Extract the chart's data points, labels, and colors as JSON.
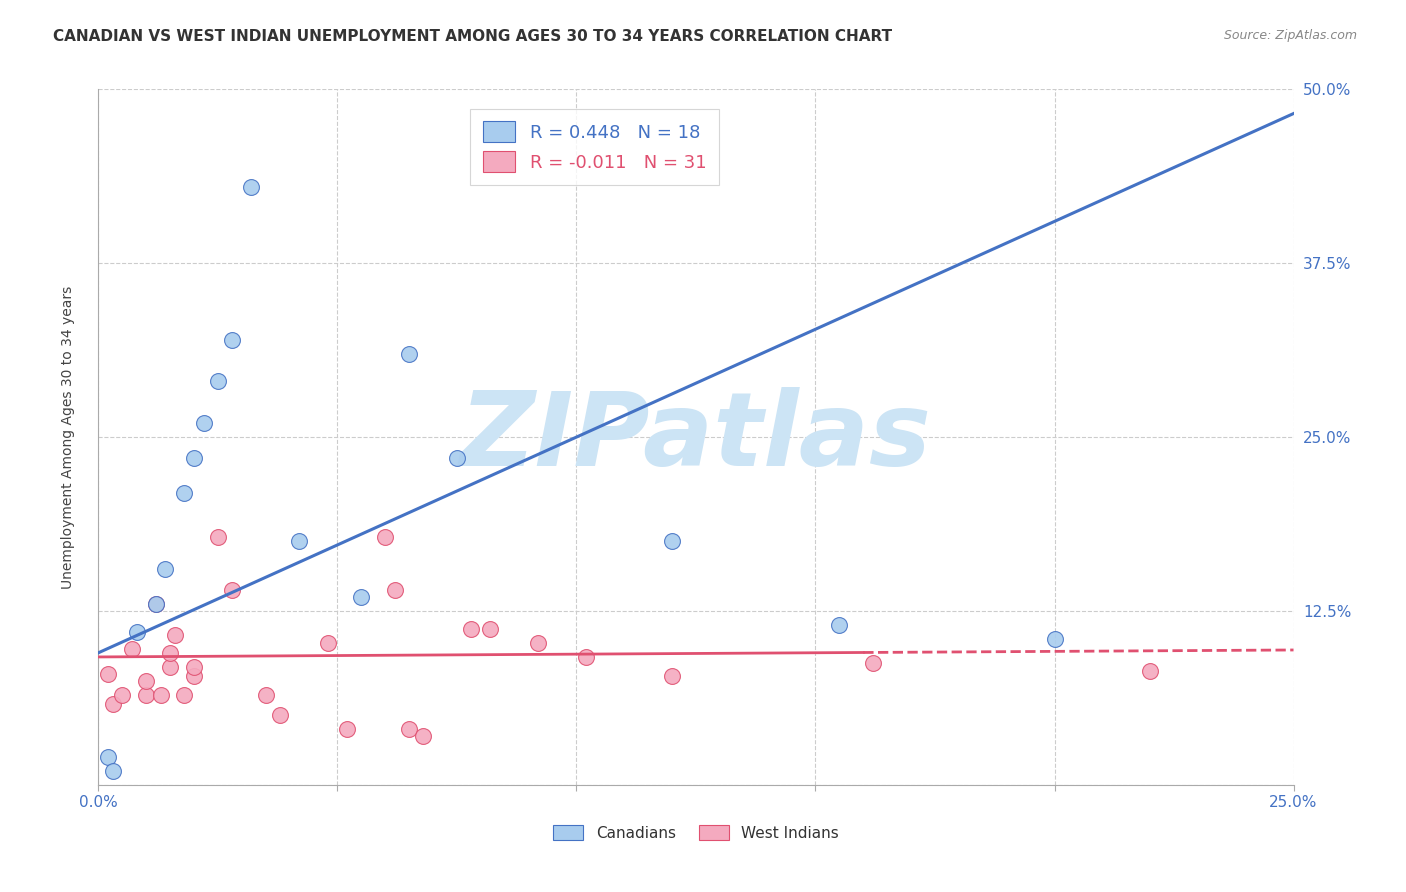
{
  "title": "CANADIAN VS WEST INDIAN UNEMPLOYMENT AMONG AGES 30 TO 34 YEARS CORRELATION CHART",
  "source": "Source: ZipAtlas.com",
  "ylabel": "Unemployment Among Ages 30 to 34 years",
  "xlim": [
    0.0,
    0.25
  ],
  "ylim": [
    0.0,
    0.5
  ],
  "xticks": [
    0.0,
    0.05,
    0.1,
    0.15,
    0.2,
    0.25
  ],
  "yticks": [
    0.0,
    0.125,
    0.25,
    0.375,
    0.5
  ],
  "xticklabels": [
    "0.0%",
    "",
    "",
    "",
    "",
    "25.0%"
  ],
  "yticklabels": [
    "",
    "12.5%",
    "25.0%",
    "37.5%",
    "50.0%"
  ],
  "canadian_color": "#a8ccee",
  "west_indian_color": "#f4aabf",
  "canadian_line_color": "#4472c4",
  "west_indian_line_color": "#e05070",
  "legend_R_canadian": "R = 0.448",
  "legend_N_canadian": "N = 18",
  "legend_R_west_indian": "R = -0.011",
  "legend_N_west_indian": "N = 31",
  "canadians_x": [
    0.002,
    0.003,
    0.008,
    0.012,
    0.014,
    0.018,
    0.02,
    0.022,
    0.025,
    0.028,
    0.032,
    0.042,
    0.055,
    0.065,
    0.075,
    0.12,
    0.155,
    0.2
  ],
  "canadians_y": [
    0.02,
    0.01,
    0.11,
    0.13,
    0.155,
    0.21,
    0.235,
    0.26,
    0.29,
    0.32,
    0.43,
    0.175,
    0.135,
    0.31,
    0.235,
    0.175,
    0.115,
    0.105
  ],
  "west_indians_x": [
    0.002,
    0.003,
    0.005,
    0.007,
    0.01,
    0.01,
    0.012,
    0.013,
    0.015,
    0.015,
    0.016,
    0.018,
    0.02,
    0.02,
    0.025,
    0.028,
    0.035,
    0.038,
    0.048,
    0.052,
    0.06,
    0.062,
    0.065,
    0.068,
    0.078,
    0.082,
    0.092,
    0.102,
    0.12,
    0.162,
    0.22
  ],
  "west_indians_y": [
    0.08,
    0.058,
    0.065,
    0.098,
    0.065,
    0.075,
    0.13,
    0.065,
    0.085,
    0.095,
    0.108,
    0.065,
    0.078,
    0.085,
    0.178,
    0.14,
    0.065,
    0.05,
    0.102,
    0.04,
    0.178,
    0.14,
    0.04,
    0.035,
    0.112,
    0.112,
    0.102,
    0.092,
    0.078,
    0.088,
    0.082
  ],
  "watermark_text": "ZIPatlas",
  "watermark_color": "#cce4f5",
  "title_fontsize": 11,
  "axis_tick_fontsize": 11,
  "marker_size": 130,
  "canadian_trendline_intercept": 0.095,
  "canadian_trendline_slope": 1.55,
  "west_indian_trendline_intercept": 0.092,
  "west_indian_trendline_slope": 0.02
}
